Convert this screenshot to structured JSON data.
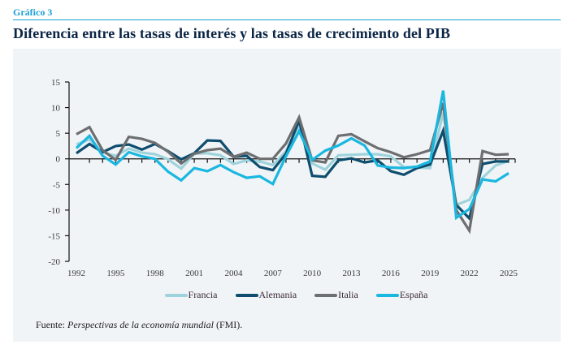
{
  "header": {
    "kicker": "Gráfico 3",
    "title": "Diferencia entre las tasas de interés y las tasas de crecimiento del PIB"
  },
  "footer": {
    "source_prefix": "Fuente: ",
    "source_italic": "Perspectivas de la economía mundial",
    "source_suffix": " (FMI)."
  },
  "colors": {
    "kicker": "#1a9fd6",
    "title": "#0b2545",
    "panel_bg": "#f0f4f6"
  },
  "chart_data": {
    "type": "line",
    "title": "Diferencia entre las tasas de interés y las tasas de crecimiento del PIB",
    "xlabel": "",
    "ylabel": "",
    "x": [
      1992,
      1993,
      1994,
      1995,
      1996,
      1997,
      1998,
      1999,
      2000,
      2001,
      2002,
      2003,
      2004,
      2005,
      2006,
      2007,
      2008,
      2009,
      2010,
      2011,
      2012,
      2013,
      2014,
      2015,
      2016,
      2017,
      2018,
      2019,
      2020,
      2021,
      2022,
      2023,
      2024,
      2025
    ],
    "x_ticks": [
      "1992",
      "1995",
      "1998",
      "2001",
      "2004",
      "2007",
      "2010",
      "2013",
      "2016",
      "2019",
      "2022",
      "2025"
    ],
    "y_ticks": [
      "15",
      "10",
      "5",
      "0",
      "-5",
      "-10",
      "-15",
      "-20"
    ],
    "ylim": [
      -20,
      15
    ],
    "xlim": [
      1992,
      2025
    ],
    "grid": false,
    "legend_position": "bottom",
    "series": [
      {
        "name": "Francia",
        "color": "#9fd3dc",
        "values": [
          2.8,
          3.8,
          1.2,
          0.6,
          2.0,
          1.2,
          0.9,
          -0.1,
          -1.9,
          1.0,
          1.1,
          0.7,
          -1.0,
          -0.3,
          -0.5,
          -1.2,
          1.5,
          6.5,
          -0.9,
          -2.1,
          0.7,
          0.8,
          0.9,
          0.9,
          0.5,
          -1.6,
          -1.7,
          -1.8,
          9.0,
          -9.0,
          -8.0,
          -3.7,
          -1.3,
          -0.4
        ]
      },
      {
        "name": "Alemania",
        "color": "#0e4d6e",
        "values": [
          1.1,
          2.9,
          1.3,
          2.5,
          2.8,
          1.8,
          2.9,
          1.5,
          -0.1,
          1.1,
          3.6,
          3.5,
          0.4,
          0.6,
          -1.6,
          -2.2,
          1.0,
          7.5,
          -3.3,
          -3.5,
          -0.3,
          0.1,
          -0.7,
          -0.3,
          -2.4,
          -3.1,
          -1.8,
          -1.1,
          5.5,
          -9.0,
          -11.6,
          -1.0,
          -0.5,
          -0.5
        ]
      },
      {
        "name": "Italia",
        "color": "#6d6e70",
        "values": [
          4.8,
          6.2,
          1.7,
          -0.2,
          4.3,
          3.9,
          3.1,
          1.4,
          -0.9,
          1.0,
          1.7,
          2.0,
          0.4,
          1.2,
          0.0,
          0.0,
          3.0,
          8.1,
          -0.3,
          -0.7,
          4.5,
          4.8,
          3.4,
          2.1,
          1.3,
          0.3,
          0.9,
          1.7,
          10.9,
          -10.0,
          -14.0,
          1.5,
          0.8,
          0.9
        ]
      },
      {
        "name": "España",
        "color": "#1ab7e0",
        "values": [
          2.1,
          4.5,
          0.6,
          -1.1,
          1.3,
          0.5,
          0.0,
          -2.5,
          -4.2,
          -1.8,
          -2.4,
          -1.2,
          -2.6,
          -3.7,
          -3.4,
          -4.9,
          0.5,
          5.4,
          -0.2,
          1.6,
          2.6,
          4.0,
          2.6,
          -1.3,
          -1.7,
          -1.8,
          -1.5,
          -0.5,
          13.3,
          -11.5,
          -9.8,
          -4.0,
          -4.4,
          -2.8
        ]
      }
    ]
  }
}
